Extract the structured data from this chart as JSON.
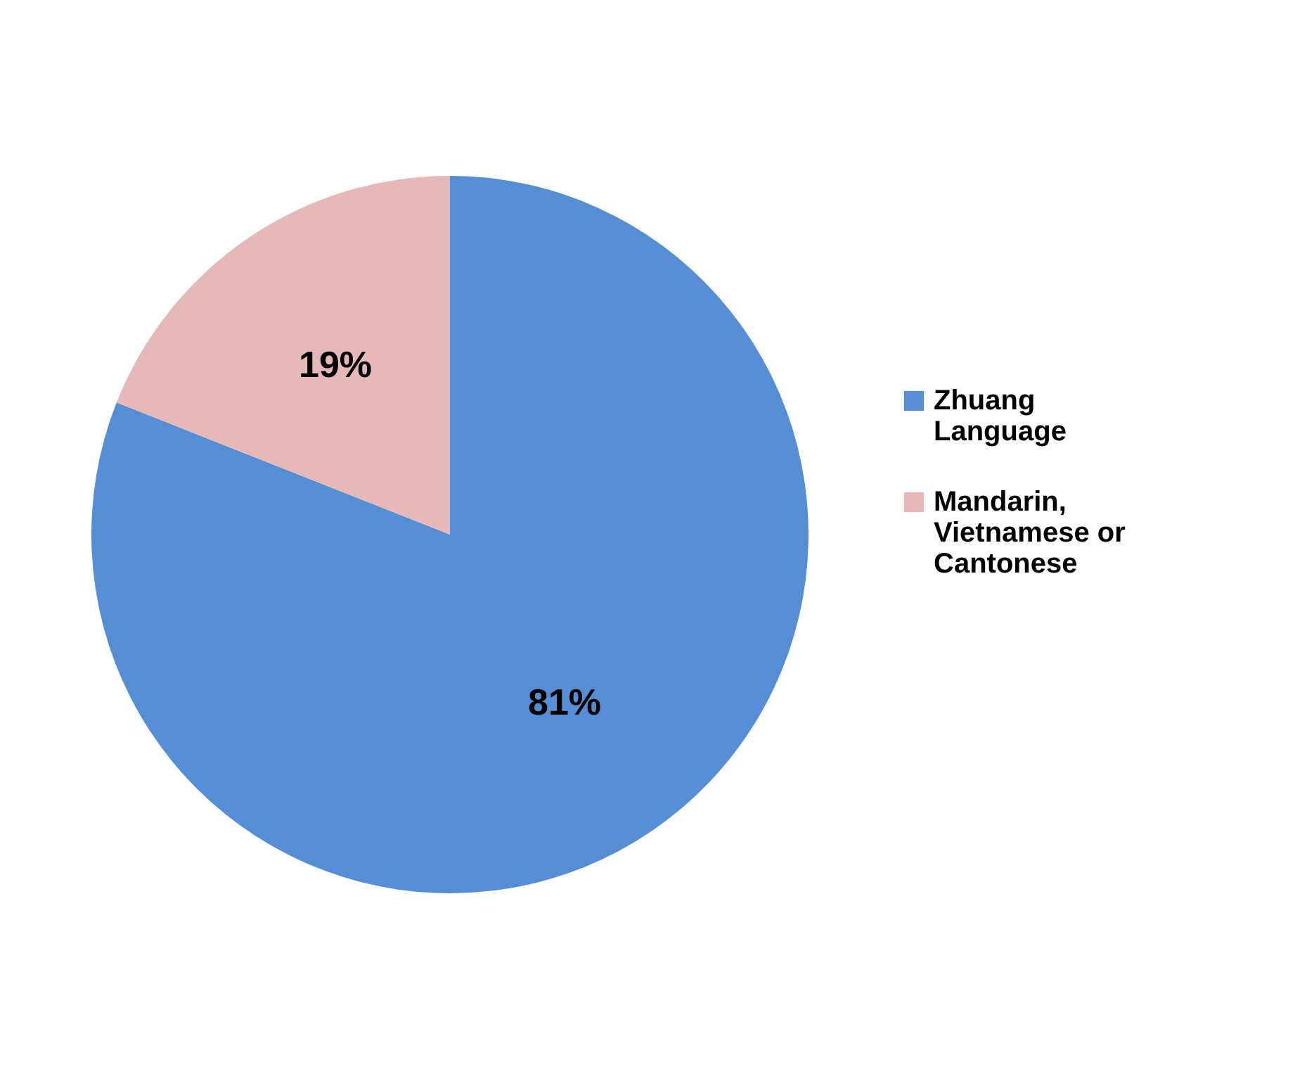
{
  "chart_data": {
    "type": "pie",
    "categories": [
      "Zhuang Language",
      "Mandarin, Vietnamese or Cantonese"
    ],
    "values": [
      81,
      19
    ],
    "colors": [
      "#558ed5",
      "#e6b9b8"
    ],
    "value_labels": [
      "81%",
      "19%"
    ],
    "legend": "right"
  }
}
